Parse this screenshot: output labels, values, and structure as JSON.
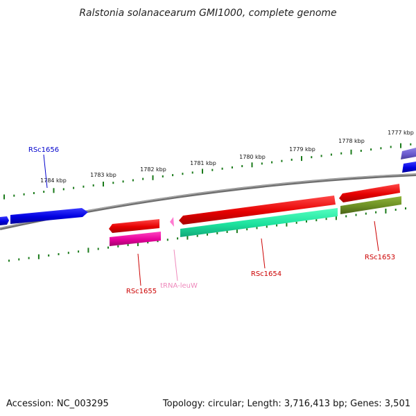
{
  "title": "Ralstonia solanacearum GMI1000, complete genome",
  "footer": {
    "accession": "Accession: NC_003295",
    "summary": "Topology: circular; Length: 3,716,413 bp; Genes: 3,501"
  },
  "scale_labels": [
    "1777 kbp",
    "1778 kbp",
    "1779 kbp",
    "1780 kbp",
    "1781 kbp",
    "1782 kbp",
    "1783 kbp",
    "1784 kbp"
  ],
  "genes": [
    {
      "name": "RSc1656",
      "color": "#0000cc"
    },
    {
      "name": "RSc1655",
      "color": "#cc0000"
    },
    {
      "name": "tRNA-leuW",
      "color": "#ee88bb"
    },
    {
      "name": "RSc1654",
      "color": "#cc0000"
    },
    {
      "name": "RSc1653",
      "color": "#cc0000"
    }
  ],
  "colors": {
    "backbone": "#808080",
    "ticks": "#1a7a1a",
    "cds_forward": "#0000ee",
    "cds_reverse": "#ee0000",
    "trna": "#ff66cc",
    "feature_teal": "#22e6a0",
    "feature_olive": "#6b8e23",
    "feature_magenta": "#e6009a",
    "feature_purple": "#6a5acd"
  }
}
